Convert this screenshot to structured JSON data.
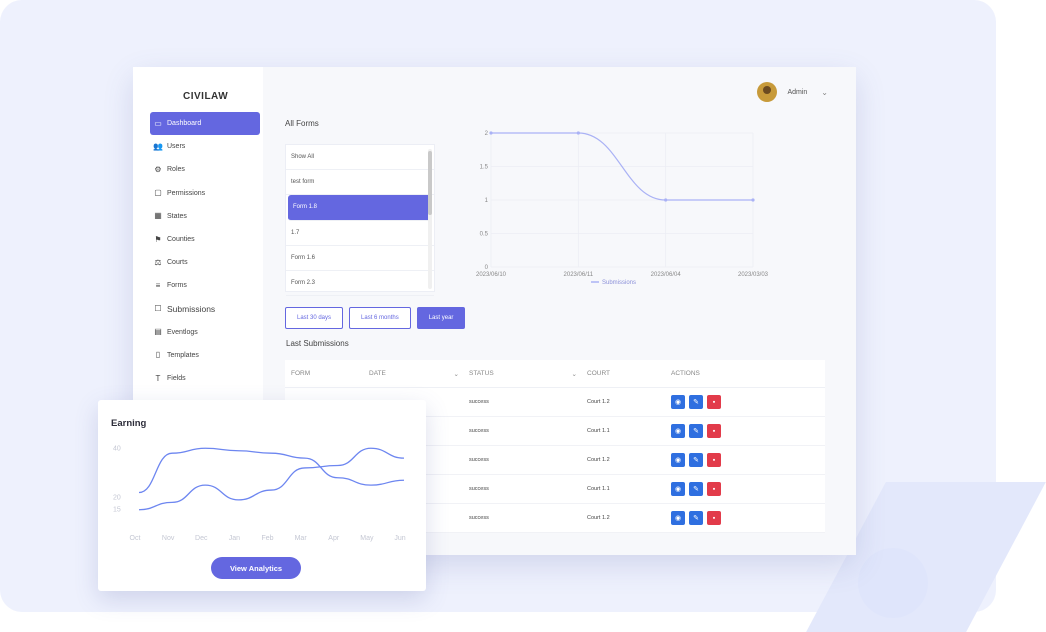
{
  "app": {
    "title": "CIVILAW",
    "user_name": "Admin"
  },
  "sidebar": {
    "items": [
      {
        "label": "Dashboard",
        "icon": "monitor-icon",
        "active": true
      },
      {
        "label": "Users",
        "icon": "users-icon"
      },
      {
        "label": "Roles",
        "icon": "roles-icon"
      },
      {
        "label": "Permissions",
        "icon": "folder-icon"
      },
      {
        "label": "States",
        "icon": "map-icon"
      },
      {
        "label": "Counties",
        "icon": "flag-icon"
      },
      {
        "label": "Courts",
        "icon": "gavel-icon"
      },
      {
        "label": "Forms",
        "icon": "sliders-icon"
      },
      {
        "label": "Submissions",
        "icon": "inbox-icon"
      },
      {
        "label": "Eventlogs",
        "icon": "calendar-icon"
      },
      {
        "label": "Templates",
        "icon": "file-icon"
      },
      {
        "label": "Fields",
        "icon": "text-icon"
      }
    ]
  },
  "forms": {
    "title": "All Forms",
    "items": [
      "Show All",
      "test form",
      "Form 1.8",
      "1.7",
      "Form 1.6",
      "Form 2.3"
    ],
    "selected_index": 2
  },
  "ranges": {
    "buttons": [
      "Last 30 days",
      "Last 6 months",
      "Last year"
    ],
    "active_index": 2
  },
  "submissions": {
    "title": "Last Submissions",
    "headers": {
      "form": "FORM",
      "date": "DATE",
      "status": "STATUS",
      "court": "COURT",
      "actions": "ACTIONS"
    },
    "rows": [
      {
        "status": "success",
        "court": "Court 1.2"
      },
      {
        "status": "success",
        "court": "Court 1.1"
      },
      {
        "status": "success",
        "court": "Court 1.2"
      },
      {
        "status": "success",
        "court": "Court 1.1"
      },
      {
        "status": "success",
        "court": "Court 1.2"
      }
    ]
  },
  "earning": {
    "title": "Earning",
    "button_label": "View Analytics"
  },
  "chart_data": [
    {
      "type": "line",
      "title": "",
      "x": [
        "2023/06/10",
        "2023/06/11",
        "2023/06/04",
        "2023/03/03"
      ],
      "series": [
        {
          "name": "Submissions",
          "values": [
            2,
            2,
            1,
            1
          ]
        }
      ],
      "yticks": [
        "0",
        "0.5",
        "1",
        "1.5",
        "2"
      ],
      "ylim": [
        0,
        2
      ],
      "legend": "bottom",
      "grid": true,
      "color": "#aab2f5"
    },
    {
      "type": "line",
      "title": "Earning",
      "categories": [
        "Oct",
        "Nov",
        "Dec",
        "Jan",
        "Feb",
        "Mar",
        "Apr",
        "May",
        "Jun"
      ],
      "yticks": [
        "15",
        "20",
        "40"
      ],
      "ylim": [
        10,
        45
      ],
      "grid": false,
      "color": "#6d86f0",
      "series": [
        {
          "values": [
            22,
            38,
            40,
            39,
            38,
            36,
            28,
            25,
            27
          ]
        },
        {
          "values": [
            15,
            18,
            25,
            19,
            23,
            32,
            33,
            40,
            36
          ]
        }
      ]
    }
  ]
}
